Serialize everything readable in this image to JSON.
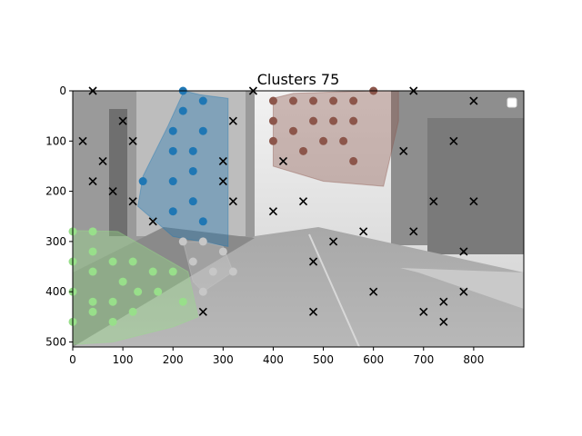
{
  "chart_data": {
    "type": "scatter",
    "title": "Clusters 75",
    "xlabel": "",
    "ylabel": "",
    "xlim": [
      0,
      900
    ],
    "ylim": [
      510,
      0
    ],
    "y_inverted": true,
    "xticks": [
      0,
      100,
      200,
      300,
      400,
      500,
      600,
      700,
      800
    ],
    "yticks": [
      0,
      100,
      200,
      300,
      400,
      500
    ],
    "background": "grayscale street photograph",
    "legend": "top-right (empty)",
    "colors": {
      "cluster_blue": "#1f77b4",
      "cluster_brown": "#8c564b",
      "cluster_green": "#98df8a",
      "cluster_gray": "#c7c7c7",
      "outlier": "#000000"
    },
    "clusters": [
      {
        "color_key": "cluster_blue",
        "hull": [
          [
            222,
            0
          ],
          [
            255,
            8
          ],
          [
            310,
            15
          ],
          [
            310,
            310
          ],
          [
            200,
            290
          ],
          [
            130,
            230
          ],
          [
            140,
            170
          ],
          [
            190,
            70
          ]
        ],
        "points": [
          [
            220,
            0
          ],
          [
            260,
            20
          ],
          [
            220,
            40
          ],
          [
            200,
            80
          ],
          [
            260,
            80
          ],
          [
            200,
            120
          ],
          [
            240,
            120
          ],
          [
            240,
            160
          ],
          [
            140,
            180
          ],
          [
            200,
            180
          ],
          [
            240,
            220
          ],
          [
            200,
            240
          ],
          [
            260,
            260
          ]
        ]
      },
      {
        "color_key": "cluster_brown",
        "hull": [
          [
            400,
            15
          ],
          [
            440,
            5
          ],
          [
            600,
            0
          ],
          [
            650,
            0
          ],
          [
            650,
            60
          ],
          [
            620,
            190
          ],
          [
            500,
            180
          ],
          [
            400,
            150
          ]
        ],
        "points": [
          [
            600,
            0
          ],
          [
            400,
            20
          ],
          [
            440,
            20
          ],
          [
            480,
            20
          ],
          [
            520,
            20
          ],
          [
            560,
            20
          ],
          [
            400,
            60
          ],
          [
            480,
            60
          ],
          [
            520,
            60
          ],
          [
            560,
            60
          ],
          [
            440,
            80
          ],
          [
            500,
            100
          ],
          [
            540,
            100
          ],
          [
            400,
            100
          ],
          [
            460,
            120
          ],
          [
            560,
            140
          ]
        ]
      },
      {
        "color_key": "cluster_green",
        "hull": [
          [
            0,
            278
          ],
          [
            90,
            280
          ],
          [
            160,
            320
          ],
          [
            230,
            360
          ],
          [
            250,
            450
          ],
          [
            200,
            470
          ],
          [
            80,
            500
          ],
          [
            0,
            505
          ]
        ],
        "points": [
          [
            0,
            280
          ],
          [
            40,
            280
          ],
          [
            40,
            320
          ],
          [
            0,
            340
          ],
          [
            80,
            340
          ],
          [
            120,
            340
          ],
          [
            40,
            360
          ],
          [
            160,
            360
          ],
          [
            200,
            360
          ],
          [
            100,
            380
          ],
          [
            0,
            400
          ],
          [
            130,
            400
          ],
          [
            170,
            400
          ],
          [
            40,
            420
          ],
          [
            80,
            420
          ],
          [
            220,
            420
          ],
          [
            40,
            440
          ],
          [
            120,
            440
          ],
          [
            80,
            460
          ],
          [
            0,
            460
          ]
        ]
      },
      {
        "color_key": "cluster_gray",
        "hull": [
          [
            220,
            300
          ],
          [
            260,
            300
          ],
          [
            300,
            310
          ],
          [
            320,
            360
          ],
          [
            260,
            400
          ],
          [
            240,
            380
          ]
        ],
        "points": [
          [
            220,
            300
          ],
          [
            260,
            300
          ],
          [
            300,
            320
          ],
          [
            240,
            340
          ],
          [
            280,
            360
          ],
          [
            320,
            360
          ],
          [
            260,
            400
          ]
        ]
      }
    ],
    "outliers": [
      [
        40,
        0
      ],
      [
        360,
        0
      ],
      [
        680,
        0
      ],
      [
        800,
        20
      ],
      [
        100,
        60
      ],
      [
        320,
        60
      ],
      [
        20,
        100
      ],
      [
        120,
        100
      ],
      [
        760,
        100
      ],
      [
        60,
        140
      ],
      [
        300,
        140
      ],
      [
        420,
        140
      ],
      [
        660,
        120
      ],
      [
        40,
        180
      ],
      [
        300,
        180
      ],
      [
        80,
        200
      ],
      [
        120,
        220
      ],
      [
        320,
        220
      ],
      [
        460,
        220
      ],
      [
        720,
        220
      ],
      [
        800,
        220
      ],
      [
        400,
        240
      ],
      [
        160,
        260
      ],
      [
        580,
        280
      ],
      [
        680,
        280
      ],
      [
        520,
        300
      ],
      [
        780,
        320
      ],
      [
        480,
        340
      ],
      [
        600,
        400
      ],
      [
        780,
        400
      ],
      [
        740,
        420
      ],
      [
        260,
        440
      ],
      [
        480,
        440
      ],
      [
        700,
        440
      ],
      [
        740,
        460
      ]
    ]
  }
}
